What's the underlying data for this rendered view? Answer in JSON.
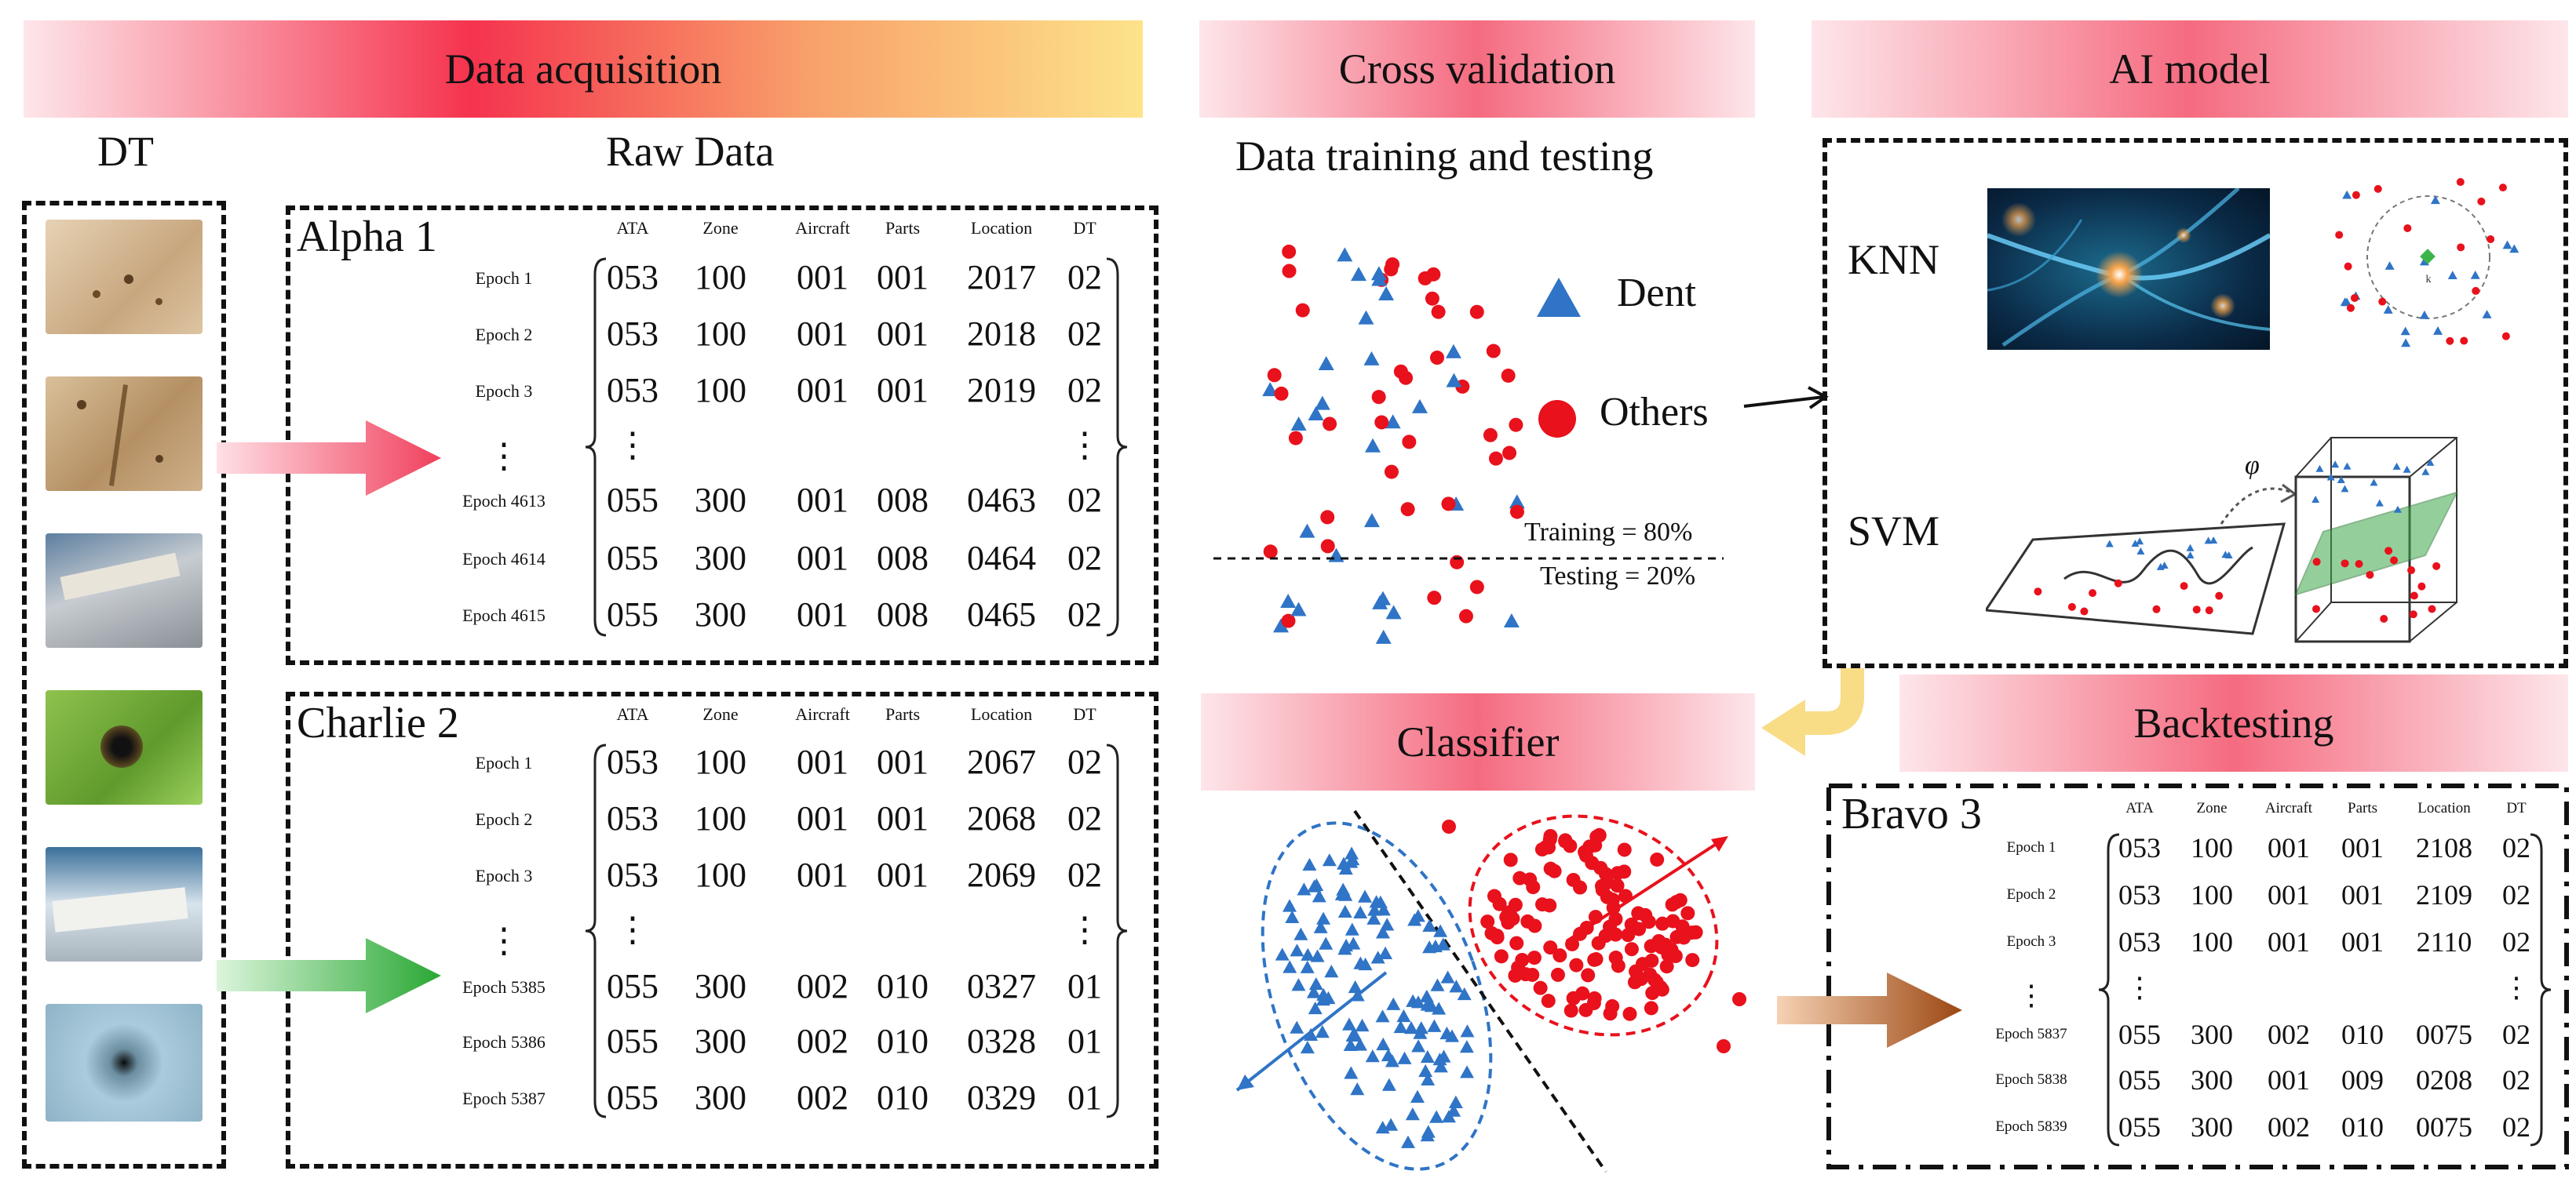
{
  "banners": {
    "data_acquisition": "Data acquisition",
    "cross_validation": "Cross validation",
    "ai_model": "AI model",
    "classifier": "Classifier",
    "backtesting": "Backtesting"
  },
  "labels": {
    "dt": "DT",
    "raw_data": "Raw Data",
    "training_testing": "Data training and testing",
    "dent": "Dent",
    "others": "Others",
    "training": "Training = 80%",
    "testing": "Testing = 20%",
    "knn": "KNN",
    "svm": "SVM",
    "phi": "φ",
    "k": "k"
  },
  "columns": [
    "ATA",
    "Zone",
    "Aircraft",
    "Parts",
    "Location",
    "DT"
  ],
  "tables": {
    "alpha": {
      "name": "Alpha 1",
      "rows": [
        {
          "epoch": "Epoch 1",
          "cells": [
            "053",
            "100",
            "001",
            "001",
            "2017",
            "02"
          ]
        },
        {
          "epoch": "Epoch 2",
          "cells": [
            "053",
            "100",
            "001",
            "001",
            "2018",
            "02"
          ]
        },
        {
          "epoch": "Epoch 3",
          "cells": [
            "053",
            "100",
            "001",
            "001",
            "2019",
            "02"
          ]
        },
        {
          "epoch": "⋮",
          "cells": [
            "⋮",
            "",
            "",
            "",
            "",
            "⋮"
          ]
        },
        {
          "epoch": "Epoch 4613",
          "cells": [
            "055",
            "300",
            "001",
            "008",
            "0463",
            "02"
          ]
        },
        {
          "epoch": "Epoch 4614",
          "cells": [
            "055",
            "300",
            "001",
            "008",
            "0464",
            "02"
          ]
        },
        {
          "epoch": "Epoch 4615",
          "cells": [
            "055",
            "300",
            "001",
            "008",
            "0465",
            "02"
          ]
        }
      ]
    },
    "charlie": {
      "name": "Charlie 2",
      "rows": [
        {
          "epoch": "Epoch 1",
          "cells": [
            "053",
            "100",
            "001",
            "001",
            "2067",
            "02"
          ]
        },
        {
          "epoch": "Epoch 2",
          "cells": [
            "053",
            "100",
            "001",
            "001",
            "2068",
            "02"
          ]
        },
        {
          "epoch": "Epoch 3",
          "cells": [
            "053",
            "100",
            "001",
            "001",
            "2069",
            "02"
          ]
        },
        {
          "epoch": "⋮",
          "cells": [
            "⋮",
            "",
            "",
            "",
            "",
            "⋮"
          ]
        },
        {
          "epoch": "Epoch 5385",
          "cells": [
            "055",
            "300",
            "002",
            "010",
            "0327",
            "01"
          ]
        },
        {
          "epoch": "Epoch 5386",
          "cells": [
            "055",
            "300",
            "002",
            "010",
            "0328",
            "01"
          ]
        },
        {
          "epoch": "Epoch 5387",
          "cells": [
            "055",
            "300",
            "002",
            "010",
            "0329",
            "01"
          ]
        }
      ]
    },
    "bravo": {
      "name": "Bravo 3",
      "rows": [
        {
          "epoch": "Epoch 1",
          "cells": [
            "053",
            "100",
            "001",
            "001",
            "2108",
            "02"
          ]
        },
        {
          "epoch": "Epoch 2",
          "cells": [
            "053",
            "100",
            "001",
            "001",
            "2109",
            "02"
          ]
        },
        {
          "epoch": "Epoch 3",
          "cells": [
            "053",
            "100",
            "001",
            "001",
            "2110",
            "02"
          ]
        },
        {
          "epoch": "⋮",
          "cells": [
            "⋮",
            "",
            "",
            "",
            "",
            "⋮"
          ]
        },
        {
          "epoch": "Epoch 5837",
          "cells": [
            "055",
            "300",
            "002",
            "010",
            "0075",
            "02"
          ]
        },
        {
          "epoch": "Epoch 5838",
          "cells": [
            "055",
            "300",
            "001",
            "009",
            "0208",
            "02"
          ]
        },
        {
          "epoch": "Epoch 5839",
          "cells": [
            "055",
            "300",
            "002",
            "010",
            "0075",
            "02"
          ]
        }
      ]
    }
  },
  "colors": {
    "red": "#e8111c",
    "blue": "#2f74c6",
    "green_arrow": "#35b43e",
    "pink_arrow": "#f0506a",
    "brown_arrow": "#b2591f",
    "yellow_arrow": "#f6d36b"
  }
}
